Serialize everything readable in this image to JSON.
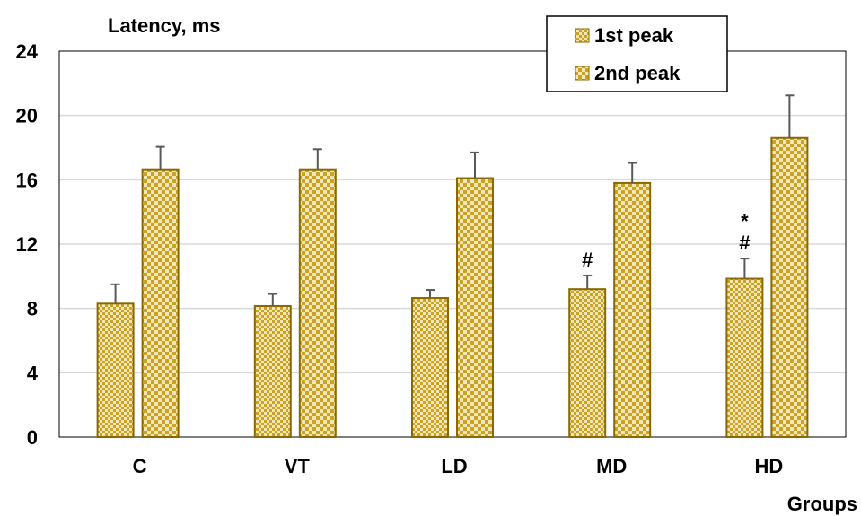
{
  "chart_data": {
    "type": "bar",
    "ylabel": "Latency, ms",
    "xlabel": "Groups",
    "ylim": [
      0,
      24
    ],
    "yticks": [
      0,
      4,
      8,
      12,
      16,
      20,
      24
    ],
    "categories": [
      "C",
      "VT",
      "LD",
      "MD",
      "HD"
    ],
    "series": [
      {
        "name": "1st peak",
        "values": [
          8.3,
          8.15,
          8.65,
          9.2,
          9.85
        ],
        "errors": [
          1.2,
          0.75,
          0.5,
          0.85,
          1.25
        ],
        "pattern": "fine-checker"
      },
      {
        "name": "2nd peak",
        "values": [
          16.65,
          16.65,
          16.1,
          15.8,
          18.6
        ],
        "errors": [
          1.4,
          1.25,
          1.6,
          1.25,
          2.65
        ],
        "pattern": "coarse-checker"
      }
    ],
    "annotations": [
      {
        "category": "MD",
        "series": "1st peak",
        "text": "#"
      },
      {
        "category": "HD",
        "series": "1st peak",
        "text": "*\n#"
      }
    ],
    "legend": "top-right",
    "grid": true
  },
  "colors": {
    "bar_fill": "#c9a227",
    "bar_light": "#f3e7b6",
    "bar_edge": "#8a6a00",
    "error_bar": "#595959",
    "grid": "#d9d9d9"
  }
}
